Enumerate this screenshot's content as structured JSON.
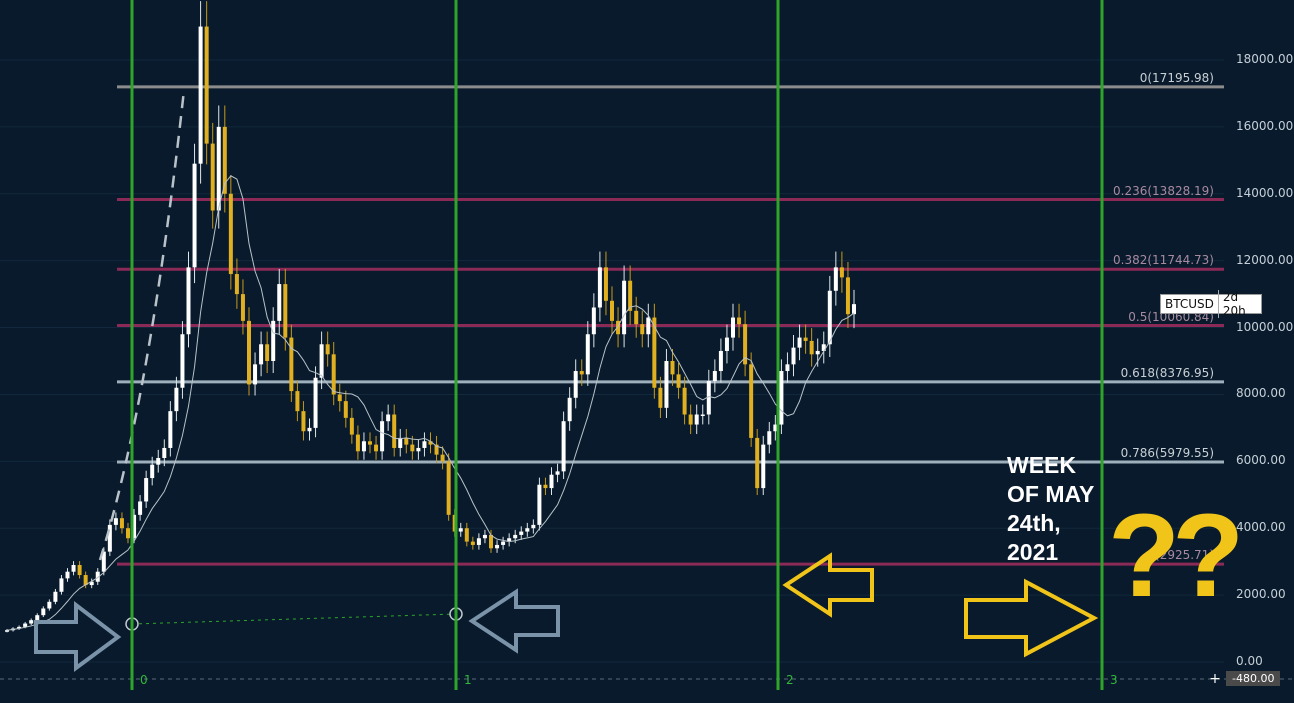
{
  "chart_data": {
    "type": "candlestick",
    "symbol": "BTCUSD",
    "interval": "2d 20h",
    "y_axis": {
      "ticks": [
        "18000.00",
        "16000.00",
        "14000.00",
        "12000.00",
        "10000.00",
        "8000.00",
        "6000.00",
        "4000.00",
        "2000.00",
        "0.00"
      ],
      "tick_values": [
        18000,
        16000,
        14000,
        12000,
        10000,
        8000,
        6000,
        4000,
        2000,
        0
      ],
      "ylim": [
        -480,
        19700
      ],
      "cursor_label": "-480.00"
    },
    "fib_levels": [
      {
        "label": "0(17195.98)",
        "value": 17195.98,
        "color": "#8c8c8c"
      },
      {
        "label": "0.236(13828.19)",
        "value": 13828.19,
        "color": "#8b2a57"
      },
      {
        "label": "0.382(11744.73)",
        "value": 11744.73,
        "color": "#8b2a57"
      },
      {
        "label": "0.5(10060.84)",
        "value": 10060.84,
        "color": "#8b2a57"
      },
      {
        "label": "0.618(8376.95)",
        "value": 8376.95,
        "color": "#9fb0bd"
      },
      {
        "label": "0.786(5979.55)",
        "value": 5979.55,
        "color": "#9fb0bd"
      },
      {
        "label": "1(2925.71)",
        "value": 2925.71,
        "color": "#8b2a57"
      }
    ],
    "cycle_markers": [
      "0",
      "1",
      "2",
      "3"
    ],
    "candles_close": [
      950,
      1000,
      1050,
      1150,
      1250,
      1400,
      1600,
      1800,
      2100,
      2500,
      2700,
      2900,
      2600,
      2300,
      2400,
      2700,
      3300,
      4100,
      4300,
      4000,
      3700,
      4400,
      4800,
      5500,
      5900,
      6100,
      6400,
      7500,
      8200,
      9800,
      11800,
      14900,
      19000,
      15500,
      13500,
      16000,
      14000,
      11600,
      11000,
      10200,
      8300,
      8900,
      9500,
      9000,
      10200,
      11300,
      9700,
      8100,
      7500,
      6900,
      7000,
      8500,
      9500,
      9200,
      8000,
      7800,
      7300,
      6800,
      6300,
      6600,
      6500,
      6300,
      7200,
      7400,
      6400,
      6700,
      6500,
      6300,
      6400,
      6600,
      6500,
      6200,
      6000,
      4400,
      3900,
      4000,
      3600,
      3500,
      3700,
      3800,
      3400,
      3500,
      3600,
      3700,
      3800,
      3900,
      4000,
      4100,
      5300,
      5200,
      5600,
      5700,
      7200,
      7900,
      8700,
      8600,
      9800,
      10600,
      11800,
      10800,
      10200,
      9800,
      11400,
      10500,
      10100,
      9800,
      10300,
      8200,
      7600,
      9000,
      8600,
      8200,
      7400,
      7100,
      7400,
      7400,
      8400,
      8700,
      9300,
      9700,
      10300,
      10100,
      8900,
      6700,
      5200,
      6500,
      6900,
      7100,
      8700,
      8900,
      9400,
      9700,
      9600,
      9200,
      9300,
      9500,
      11100,
      11800,
      11500,
      10400,
      10700
    ]
  },
  "labels": {
    "ticker": "BTCUSD",
    "ticker_time": "2d 20h",
    "week_note": [
      "WEEK",
      "OF MAY",
      "24th,",
      "2021"
    ],
    "question_marks": "??",
    "axis_cursor": "+"
  },
  "colors": {
    "background": "#081a2b",
    "cycle_line": "#2ea52a",
    "candle_up": "#ffffff",
    "candle_down": "#e0b020",
    "annotation_yellow": "#f0c419",
    "arrow_gray": "#7a93a8"
  }
}
